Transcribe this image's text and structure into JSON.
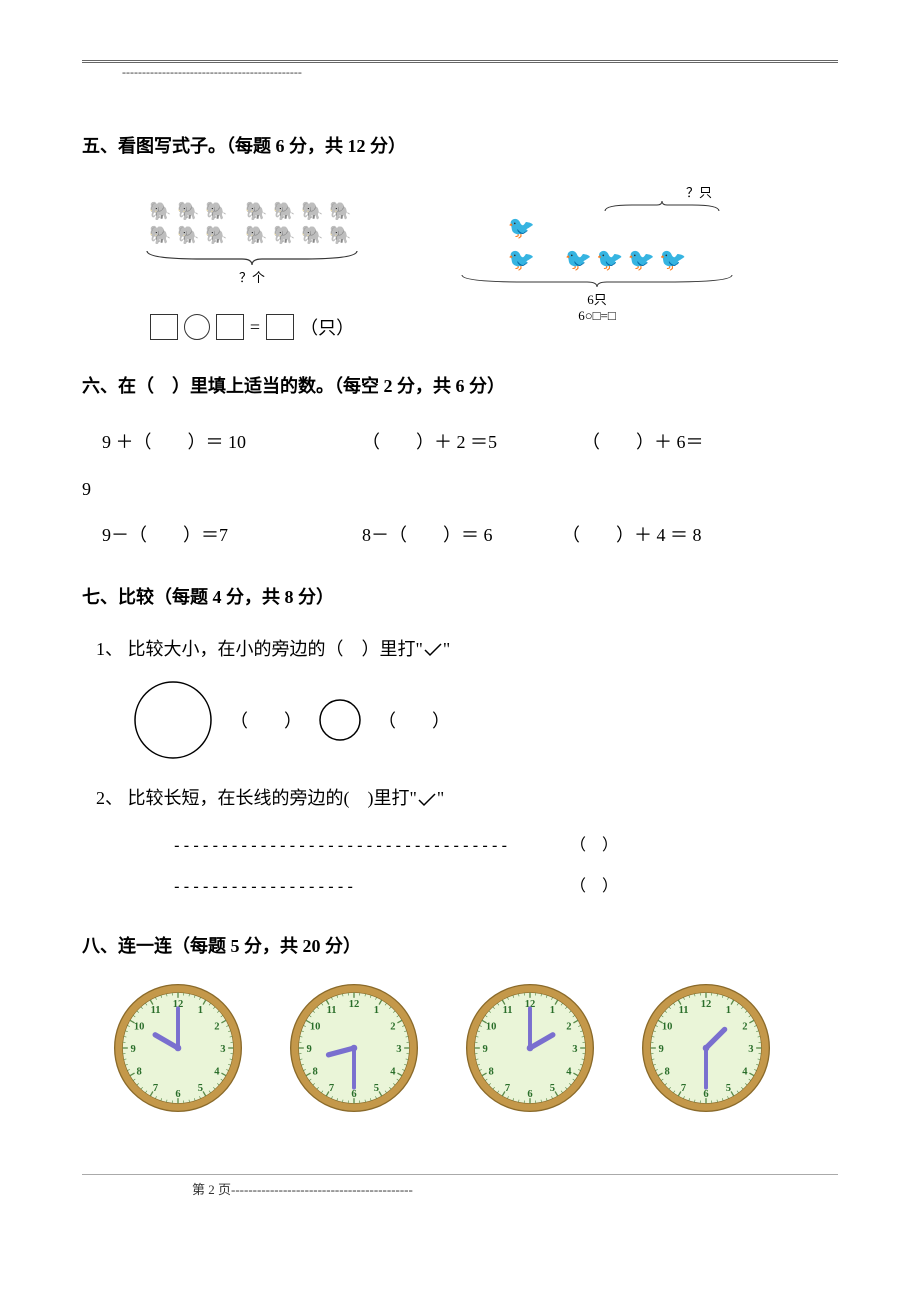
{
  "header_dashes": "---------------------------------------------",
  "q5": {
    "title": "五、看图写式子。（每题 6 分，共 12 分）",
    "left_q": "？个",
    "left_unit": "（只）",
    "right_top": "？只",
    "right_label": "6只",
    "right_eq": "6○□=□"
  },
  "q6": {
    "title": "六、在（　）里填上适当的数。（每空 2 分，共 6 分）",
    "row1": {
      "a": "9 ＋（　　）＝ 10",
      "b": "（　　）＋ 2 ＝5",
      "c": "（　　）＋ 6＝"
    },
    "lone": "9",
    "row2": {
      "a": "9－（　　）＝7",
      "b": "8－（　　）＝ 6",
      "c": "（　　）＋ 4 ＝ 8"
    }
  },
  "q7": {
    "title": "七、比较（每题 4 分，共 8 分）",
    "item1": "1、 比较大小，在小的旁边的（　）里打\"",
    "item1_tail": "\"",
    "paren": "（　　）",
    "item2": "2、 比较长短，在长线的旁边的(　)里打\"",
    "item2_tail": "\"",
    "long_dash": "-----------------------------------",
    "short_dash": "-------------------",
    "line_paren": "（　）"
  },
  "q8": {
    "title": "八、连一连（每题 5 分，共 20 分）"
  },
  "clocks": [
    {
      "hour": 10,
      "minute": 0
    },
    {
      "hour": 8,
      "minute": 30
    },
    {
      "hour": 2,
      "minute": 0
    },
    {
      "hour": 1,
      "minute": 30
    }
  ],
  "clock_style": {
    "rim_color": "#c4984a",
    "face_color": "#eaf5d8",
    "number_color": "#2a6e2a",
    "hand_color": "#7a6fcf",
    "tick_color": "#5a8a4a"
  },
  "footer": {
    "label": "第 2 页",
    "dashes": "------------------------------------------"
  }
}
